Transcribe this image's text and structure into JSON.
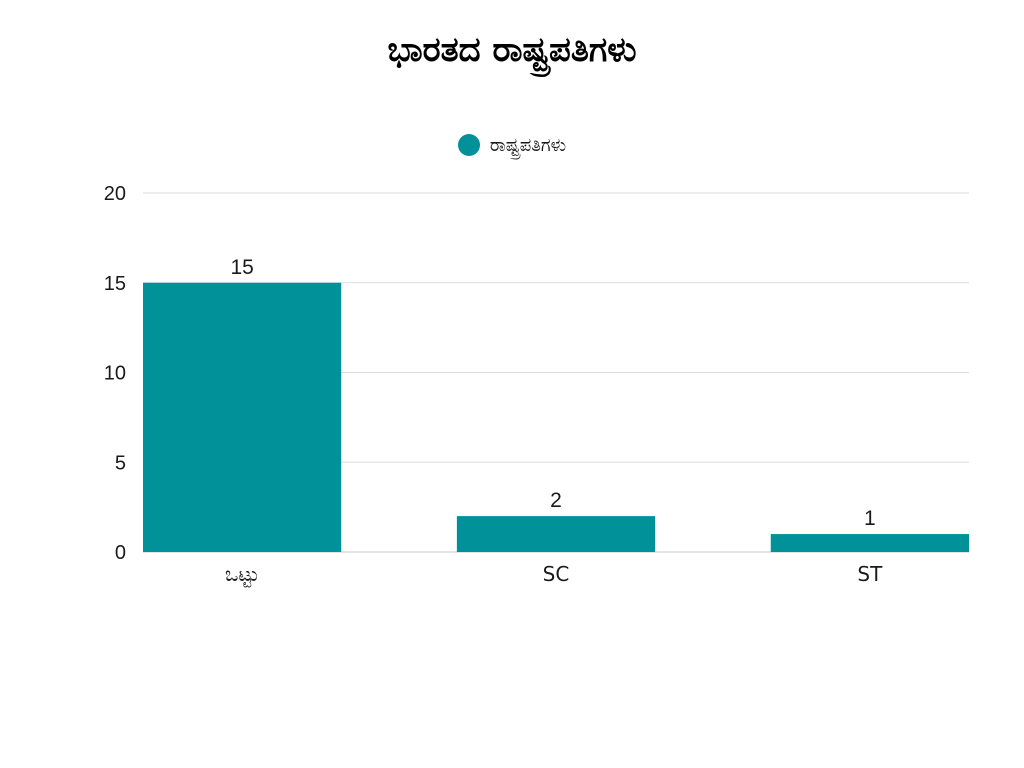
{
  "chart_data": {
    "type": "bar",
    "title": "ಭಾರತದ ರಾಷ್ಟ್ರಪತಿಗಳು",
    "categories": [
      "ಒಟ್ಟು",
      "SC",
      "ST"
    ],
    "series": [
      {
        "name": "ರಾಷ್ಟ್ರಪತಿಗಳು",
        "values": [
          15,
          2,
          1
        ],
        "color": "#009199"
      }
    ],
    "data_labels": [
      "15",
      "2",
      "1"
    ],
    "y_ticks": [
      0,
      5,
      10,
      15,
      20
    ],
    "ylim": [
      0,
      20
    ],
    "grid": true,
    "legend_position": "top-center",
    "xlabel": "",
    "ylabel": ""
  }
}
